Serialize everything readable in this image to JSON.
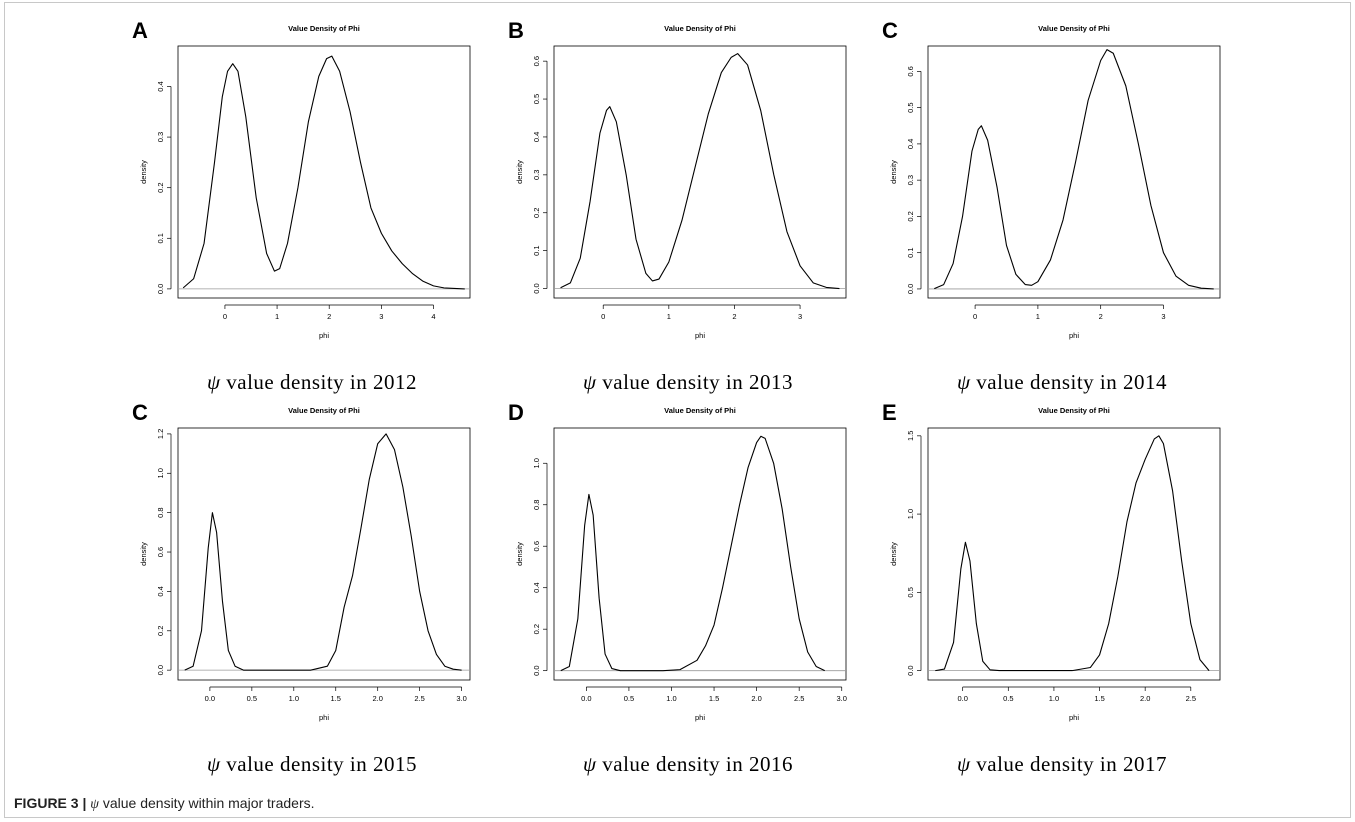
{
  "figure_caption": {
    "label": "FIGURE 3 |",
    "symbol": "ψ",
    "text": "value density within major traders."
  },
  "chart_data": [
    {
      "type": "line",
      "panel_label": "A",
      "title": "Value Density of Phi",
      "xlabel": "phi",
      "ylabel": "density",
      "caption_symbol": "ψ",
      "caption_text": "value density in 2012",
      "xlim": [
        -0.9,
        4.7
      ],
      "ylim": [
        -0.018,
        0.48
      ],
      "xticks": [
        0,
        1,
        2,
        3,
        4
      ],
      "xtick_labels": [
        "0",
        "1",
        "2",
        "3",
        "4"
      ],
      "yticks": [
        0.0,
        0.1,
        0.2,
        0.3,
        0.4
      ],
      "ytick_labels": [
        "0.0",
        "0.1",
        "0.2",
        "0.3",
        "0.4"
      ],
      "series": [
        {
          "x": [
            -0.8,
            -0.6,
            -0.4,
            -0.2,
            -0.05,
            0.05,
            0.15,
            0.25,
            0.4,
            0.6,
            0.8,
            0.95,
            1.05,
            1.2,
            1.4,
            1.6,
            1.8,
            1.95,
            2.05,
            2.2,
            2.4,
            2.6,
            2.8,
            3.0,
            3.2,
            3.4,
            3.6,
            3.8,
            4.0,
            4.2,
            4.4,
            4.6
          ],
          "y": [
            0.002,
            0.02,
            0.09,
            0.25,
            0.38,
            0.43,
            0.445,
            0.43,
            0.34,
            0.18,
            0.07,
            0.035,
            0.04,
            0.09,
            0.2,
            0.33,
            0.42,
            0.455,
            0.46,
            0.43,
            0.35,
            0.25,
            0.16,
            0.11,
            0.075,
            0.05,
            0.03,
            0.015,
            0.006,
            0.002,
            0.001,
            0.0
          ]
        }
      ]
    },
    {
      "type": "line",
      "panel_label": "B",
      "title": "Value Density of Phi",
      "xlabel": "phi",
      "ylabel": "density",
      "caption_symbol": "ψ",
      "caption_text": "value density in 2013",
      "xlim": [
        -0.75,
        3.7
      ],
      "ylim": [
        -0.025,
        0.64
      ],
      "xticks": [
        0,
        1,
        2,
        3
      ],
      "xtick_labels": [
        "0",
        "1",
        "2",
        "3"
      ],
      "yticks": [
        0.0,
        0.1,
        0.2,
        0.3,
        0.4,
        0.5,
        0.6
      ],
      "ytick_labels": [
        "0.0",
        "0.1",
        "0.2",
        "0.3",
        "0.4",
        "0.5",
        "0.6"
      ],
      "series": [
        {
          "x": [
            -0.65,
            -0.5,
            -0.35,
            -0.2,
            -0.05,
            0.05,
            0.1,
            0.2,
            0.35,
            0.5,
            0.65,
            0.75,
            0.85,
            1.0,
            1.2,
            1.4,
            1.6,
            1.8,
            1.95,
            2.05,
            2.2,
            2.4,
            2.6,
            2.8,
            3.0,
            3.2,
            3.4,
            3.6
          ],
          "y": [
            0.002,
            0.015,
            0.08,
            0.23,
            0.41,
            0.47,
            0.48,
            0.44,
            0.3,
            0.13,
            0.04,
            0.02,
            0.025,
            0.07,
            0.18,
            0.32,
            0.46,
            0.57,
            0.61,
            0.62,
            0.59,
            0.47,
            0.3,
            0.15,
            0.06,
            0.015,
            0.003,
            0.0
          ]
        }
      ]
    },
    {
      "type": "line",
      "panel_label": "C",
      "title": "Value Density of Phi",
      "xlabel": "phi",
      "ylabel": "density",
      "caption_symbol": "ψ",
      "caption_text": "value density in 2014",
      "xlim": [
        -0.75,
        3.9
      ],
      "ylim": [
        -0.025,
        0.67
      ],
      "xticks": [
        0,
        1,
        2,
        3
      ],
      "xtick_labels": [
        "0",
        "1",
        "2",
        "3"
      ],
      "yticks": [
        0.0,
        0.1,
        0.2,
        0.3,
        0.4,
        0.5,
        0.6
      ],
      "ytick_labels": [
        "0.0",
        "0.1",
        "0.2",
        "0.3",
        "0.4",
        "0.5",
        "0.6"
      ],
      "series": [
        {
          "x": [
            -0.65,
            -0.5,
            -0.35,
            -0.2,
            -0.05,
            0.05,
            0.1,
            0.2,
            0.35,
            0.5,
            0.65,
            0.8,
            0.9,
            1.0,
            1.2,
            1.4,
            1.6,
            1.8,
            2.0,
            2.1,
            2.2,
            2.4,
            2.6,
            2.8,
            3.0,
            3.2,
            3.4,
            3.6,
            3.8
          ],
          "y": [
            0.001,
            0.012,
            0.07,
            0.2,
            0.38,
            0.44,
            0.45,
            0.41,
            0.28,
            0.12,
            0.04,
            0.012,
            0.01,
            0.02,
            0.08,
            0.19,
            0.35,
            0.52,
            0.63,
            0.66,
            0.65,
            0.56,
            0.4,
            0.23,
            0.1,
            0.035,
            0.01,
            0.002,
            0.0
          ]
        }
      ]
    },
    {
      "type": "line",
      "panel_label": "C",
      "title": "Value Density of Phi",
      "xlabel": "phi",
      "ylabel": "density",
      "caption_symbol": "ψ",
      "caption_text": "value density in 2015",
      "xlim": [
        -0.38,
        3.1
      ],
      "ylim": [
        -0.05,
        1.23
      ],
      "xticks": [
        0.0,
        0.5,
        1.0,
        1.5,
        2.0,
        2.5,
        3.0
      ],
      "xtick_labels": [
        "0.0",
        "0.5",
        "1.0",
        "1.5",
        "2.0",
        "2.5",
        "3.0"
      ],
      "yticks": [
        0.0,
        0.2,
        0.4,
        0.6,
        0.8,
        1.0,
        1.2
      ],
      "ytick_labels": [
        "0.0",
        "0.2",
        "0.4",
        "0.6",
        "0.8",
        "1.0",
        "1.2"
      ],
      "series": [
        {
          "x": [
            -0.3,
            -0.2,
            -0.1,
            -0.02,
            0.03,
            0.08,
            0.15,
            0.22,
            0.3,
            0.4,
            0.6,
            0.9,
            1.2,
            1.4,
            1.5,
            1.6,
            1.7,
            1.8,
            1.9,
            2.0,
            2.1,
            2.2,
            2.3,
            2.4,
            2.5,
            2.6,
            2.7,
            2.8,
            2.9,
            3.0
          ],
          "y": [
            0.0,
            0.02,
            0.2,
            0.62,
            0.8,
            0.7,
            0.35,
            0.1,
            0.02,
            0.0,
            0.0,
            0.0,
            0.0,
            0.02,
            0.1,
            0.32,
            0.48,
            0.72,
            0.97,
            1.15,
            1.2,
            1.12,
            0.93,
            0.68,
            0.4,
            0.2,
            0.08,
            0.02,
            0.005,
            0.0
          ]
        }
      ]
    },
    {
      "type": "line",
      "panel_label": "D",
      "title": "Value Density of Phi",
      "xlabel": "phi",
      "ylabel": "density",
      "caption_symbol": "ψ",
      "caption_text": "value density in 2016",
      "xlim": [
        -0.38,
        3.05
      ],
      "ylim": [
        -0.045,
        1.17
      ],
      "xticks": [
        0.0,
        0.5,
        1.0,
        1.5,
        2.0,
        2.5,
        3.0
      ],
      "xtick_labels": [
        "0.0",
        "0.5",
        "1.0",
        "1.5",
        "2.0",
        "2.5",
        "3.0"
      ],
      "yticks": [
        0.0,
        0.2,
        0.4,
        0.6,
        0.8,
        1.0
      ],
      "ytick_labels": [
        "0.0",
        "0.2",
        "0.4",
        "0.6",
        "0.8",
        "1.0"
      ],
      "series": [
        {
          "x": [
            -0.3,
            -0.2,
            -0.1,
            -0.02,
            0.03,
            0.08,
            0.15,
            0.22,
            0.3,
            0.4,
            0.6,
            0.9,
            1.1,
            1.3,
            1.4,
            1.5,
            1.6,
            1.7,
            1.8,
            1.9,
            2.0,
            2.05,
            2.1,
            2.2,
            2.3,
            2.4,
            2.5,
            2.6,
            2.7,
            2.8
          ],
          "y": [
            0.0,
            0.02,
            0.25,
            0.7,
            0.85,
            0.75,
            0.35,
            0.08,
            0.01,
            0.0,
            0.0,
            0.0,
            0.005,
            0.05,
            0.12,
            0.22,
            0.4,
            0.6,
            0.8,
            0.98,
            1.1,
            1.13,
            1.12,
            1.0,
            0.78,
            0.5,
            0.25,
            0.09,
            0.02,
            0.0
          ]
        }
      ]
    },
    {
      "type": "line",
      "panel_label": "E",
      "title": "Value Density of Phi",
      "xlabel": "phi",
      "ylabel": "density",
      "caption_symbol": "ψ",
      "caption_text": "value density in 2017",
      "xlim": [
        -0.38,
        2.82
      ],
      "ylim": [
        -0.06,
        1.55
      ],
      "xticks": [
        0.0,
        0.5,
        1.0,
        1.5,
        2.0,
        2.5
      ],
      "xtick_labels": [
        "0.0",
        "0.5",
        "1.0",
        "1.5",
        "2.0",
        "2.5"
      ],
      "yticks": [
        0.0,
        0.5,
        1.0,
        1.5
      ],
      "ytick_labels": [
        "0.0",
        "0.5",
        "1.0",
        "1.5"
      ],
      "series": [
        {
          "x": [
            -0.3,
            -0.2,
            -0.1,
            -0.02,
            0.03,
            0.08,
            0.15,
            0.22,
            0.3,
            0.4,
            0.8,
            1.2,
            1.4,
            1.5,
            1.6,
            1.7,
            1.8,
            1.9,
            2.0,
            2.1,
            2.15,
            2.2,
            2.3,
            2.4,
            2.5,
            2.6,
            2.7
          ],
          "y": [
            0.0,
            0.01,
            0.18,
            0.65,
            0.82,
            0.7,
            0.3,
            0.06,
            0.005,
            0.0,
            0.0,
            0.0,
            0.02,
            0.1,
            0.3,
            0.6,
            0.95,
            1.2,
            1.35,
            1.48,
            1.5,
            1.45,
            1.15,
            0.7,
            0.3,
            0.07,
            0.0
          ]
        }
      ]
    }
  ]
}
